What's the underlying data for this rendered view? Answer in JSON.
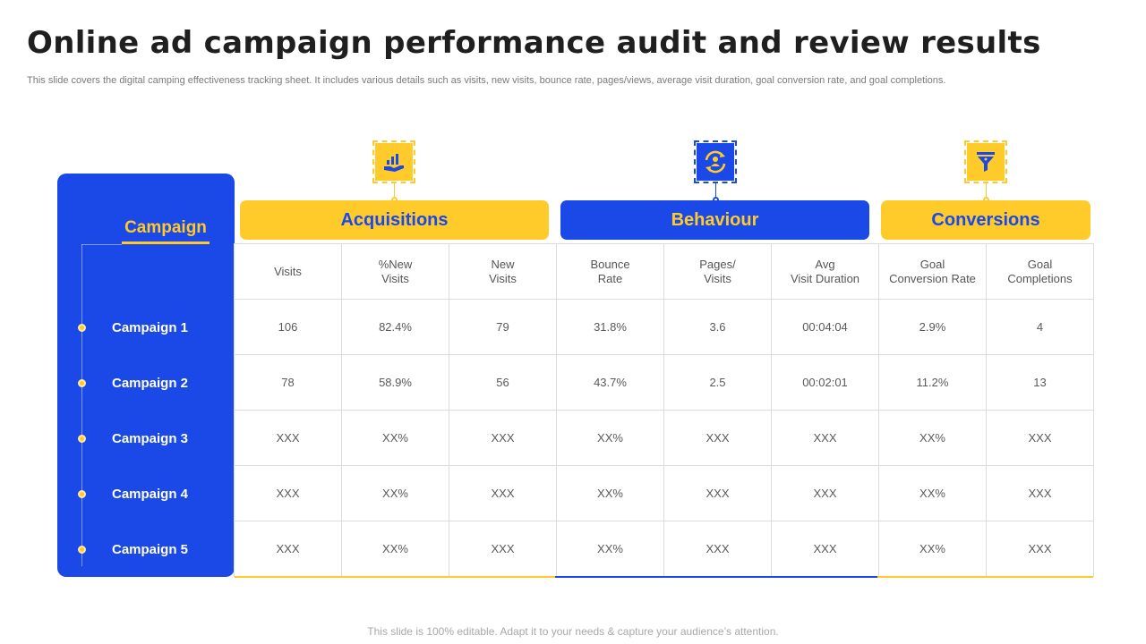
{
  "title": "Online ad campaign performance audit and review results",
  "subtitle": "This slide covers the digital camping effectiveness tracking sheet. It includes various details such as visits, new visits, bounce rate, pages/views, average visit duration, goal conversion rate, and goal completions.",
  "footer": "This slide is 100% editable. Adapt it to your needs & capture your audience’s attention.",
  "colors": {
    "blue": "#1a49e8",
    "yellow": "#ffcb2b"
  },
  "campaign_heading": "Campaign",
  "campaigns": [
    "Campaign 1",
    "Campaign 2",
    "Campaign 3",
    "Campaign 4",
    "Campaign 5"
  ],
  "groups": [
    {
      "label": "Acquisitions",
      "icon": "chart-hand-icon"
    },
    {
      "label": "Behaviour",
      "icon": "user-cycle-icon"
    },
    {
      "label": "Conversions",
      "icon": "funnel-icon"
    }
  ],
  "columns": [
    "Visits",
    "%New\nVisits",
    "New\nVisits",
    "Bounce\nRate",
    "Pages/\nVisits",
    "Avg\nVisit Duration",
    "Goal\nConversion  Rate",
    "Goal\nCompletions"
  ],
  "rows": [
    [
      "106",
      "82.4%",
      "79",
      "31.8%",
      "3.6",
      "00:04:04",
      "2.9%",
      "4"
    ],
    [
      "78",
      "58.9%",
      "56",
      "43.7%",
      "2.5",
      "00:02:01",
      "11.2%",
      "13"
    ],
    [
      "XXX",
      "XX%",
      "XXX",
      "XX%",
      "XXX",
      "XXX",
      "XX%",
      "XXX"
    ],
    [
      "XXX",
      "XX%",
      "XXX",
      "XX%",
      "XXX",
      "XXX",
      "XX%",
      "XXX"
    ],
    [
      "XXX",
      "XX%",
      "XXX",
      "XX%",
      "XXX",
      "XXX",
      "XX%",
      "XXX"
    ]
  ]
}
